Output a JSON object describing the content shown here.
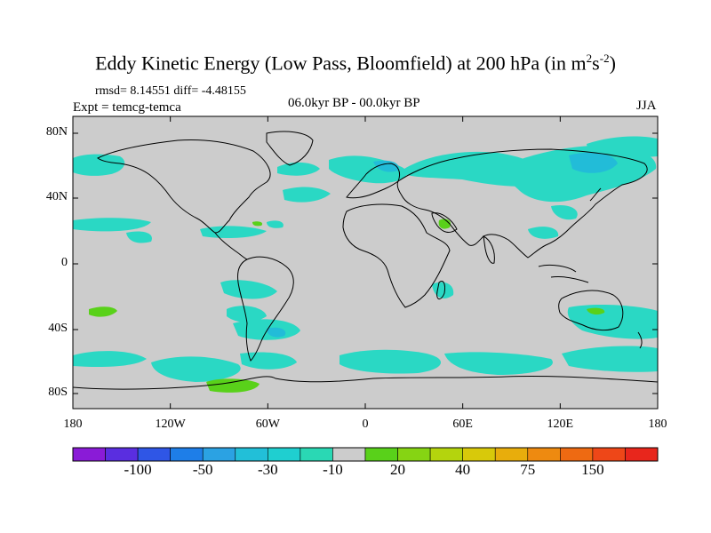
{
  "title": {
    "text": "Eddy Kinetic Energy (Low Pass, Bloomfield) at 200 hPa (in m",
    "sup1": "2",
    "mid": "s",
    "sup2": "-2",
    "close": ")"
  },
  "stats": "rmsd= 8.14551 diff= -4.48155",
  "expt_label": "Expt = temcg-temca",
  "period_label": "06.0kyr BP - 00.0kyr BP",
  "season_label": "JJA",
  "lat_ticks": [
    "80N",
    "40N",
    "0",
    "40S",
    "80S"
  ],
  "lon_ticks": [
    "180",
    "120W",
    "60W",
    "0",
    "60E",
    "120E",
    "180"
  ],
  "colorbar": {
    "labels": [
      "-100",
      "-50",
      "-30",
      "-10",
      "20",
      "40",
      "75",
      "150"
    ],
    "colors": [
      "#8a1bd7",
      "#5a2ee0",
      "#2f56e6",
      "#1e7ee8",
      "#2ba2e3",
      "#22bfd8",
      "#1fcfd0",
      "#2ad8b4",
      "#cccccc",
      "#59d11a",
      "#86d413",
      "#b4d40d",
      "#d8c90a",
      "#e8ad0c",
      "#ee8a10",
      "#ee6a12",
      "#ee4718",
      "#e8261c"
    ]
  },
  "map_colors": {
    "ocean_land": "#cccccc",
    "negative_fill": "#2ad8c4",
    "negative_fill_deep": "#22bcd8",
    "positive_fill": "#59d11a",
    "coastline": "#000000"
  }
}
